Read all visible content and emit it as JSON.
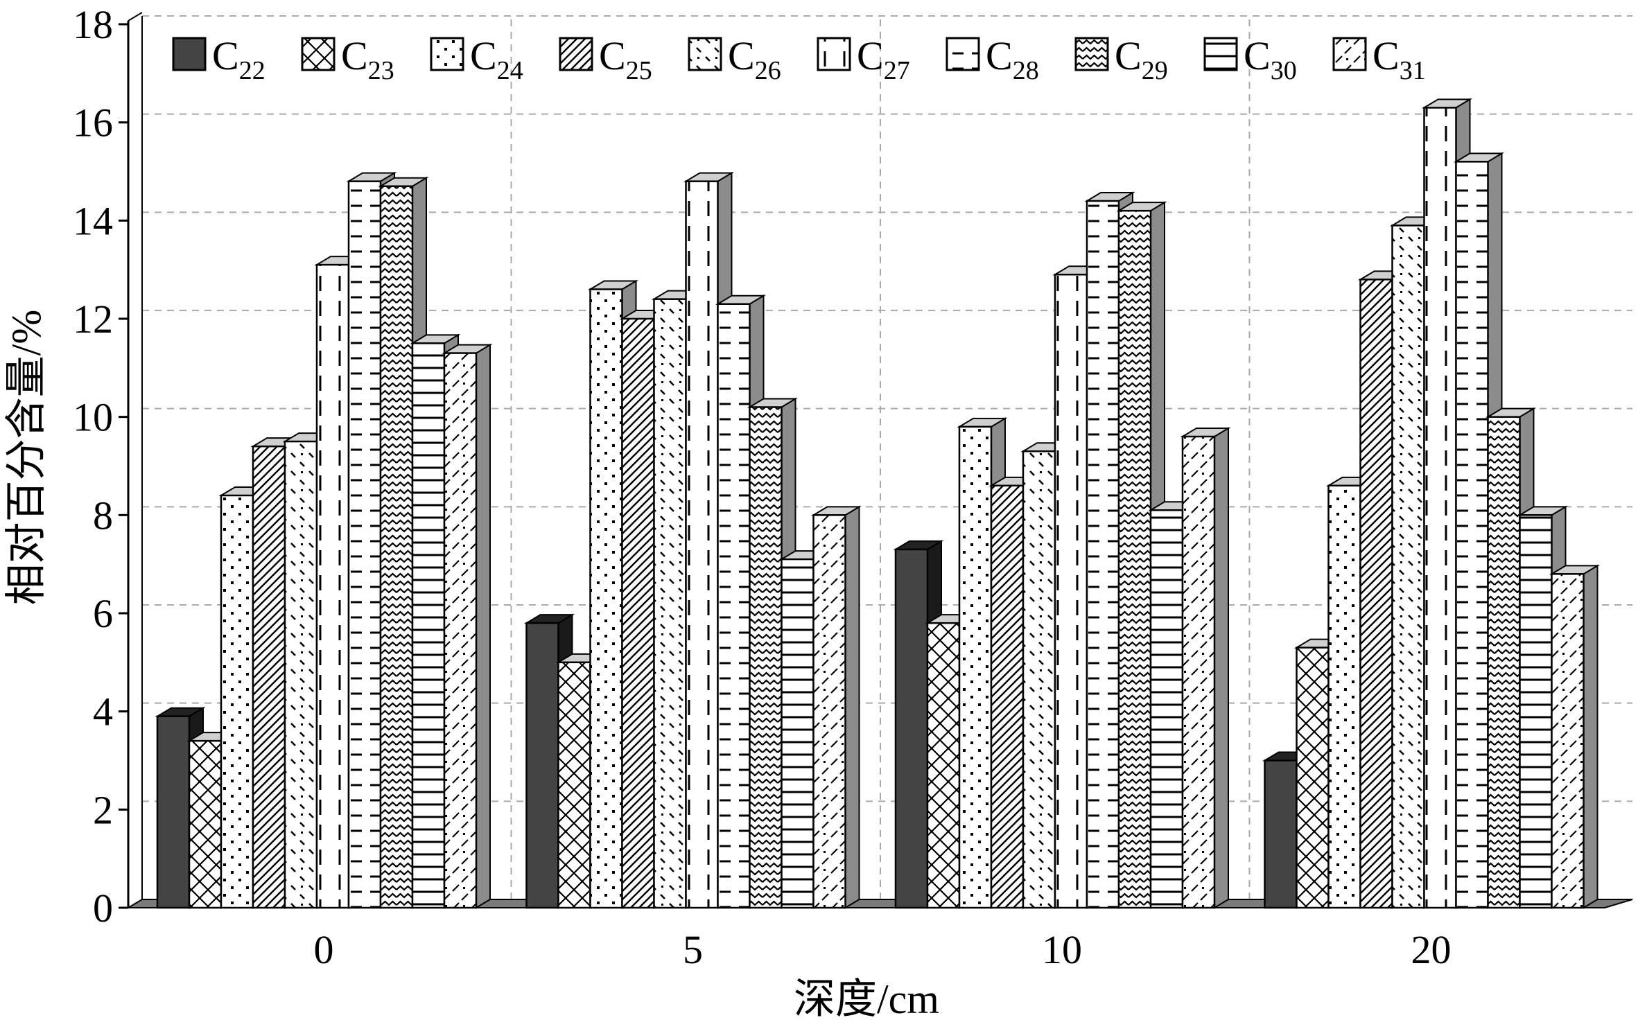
{
  "chart_data": {
    "type": "bar",
    "xlabel": "深度/cm",
    "ylabel": "相对百分含量/%",
    "ylim": [
      0,
      18
    ],
    "yticks": [
      "0",
      "2",
      "4",
      "6",
      "8",
      "10",
      "12",
      "14",
      "16",
      "18"
    ],
    "categories": [
      "0",
      "5",
      "10",
      "20"
    ],
    "grid": true,
    "legend_position": "top",
    "style": "3d-bar",
    "series": [
      {
        "name": "C22",
        "base": "C",
        "sub": "22",
        "pattern": "solid",
        "values": [
          3.9,
          5.8,
          7.3,
          3.0
        ]
      },
      {
        "name": "C23",
        "base": "C",
        "sub": "23",
        "pattern": "cross",
        "values": [
          3.4,
          5.0,
          5.8,
          5.3
        ]
      },
      {
        "name": "C24",
        "base": "C",
        "sub": "24",
        "pattern": "dots",
        "values": [
          8.4,
          12.6,
          9.8,
          8.6
        ]
      },
      {
        "name": "C25",
        "base": "C",
        "sub": "25",
        "pattern": "diagonal",
        "values": [
          9.4,
          12.0,
          8.6,
          12.8
        ]
      },
      {
        "name": "C26",
        "base": "C",
        "sub": "26",
        "pattern": "slash-dots",
        "values": [
          9.5,
          12.4,
          9.3,
          13.9
        ]
      },
      {
        "name": "C27",
        "base": "C",
        "sub": "27",
        "pattern": "vertical-dash",
        "values": [
          13.1,
          14.8,
          12.9,
          16.3
        ]
      },
      {
        "name": "C28",
        "base": "C",
        "sub": "28",
        "pattern": "horizontal-dash",
        "values": [
          14.8,
          12.3,
          14.4,
          15.2
        ]
      },
      {
        "name": "C29",
        "base": "C",
        "sub": "29",
        "pattern": "zigzag",
        "values": [
          14.7,
          10.2,
          14.2,
          10.0
        ]
      },
      {
        "name": "C30",
        "base": "C",
        "sub": "30",
        "pattern": "horizontal",
        "values": [
          11.5,
          7.1,
          8.1,
          8.0
        ]
      },
      {
        "name": "C31",
        "base": "C",
        "sub": "31",
        "pattern": "diag-dash",
        "values": [
          11.3,
          8.0,
          9.6,
          6.8
        ]
      }
    ]
  }
}
